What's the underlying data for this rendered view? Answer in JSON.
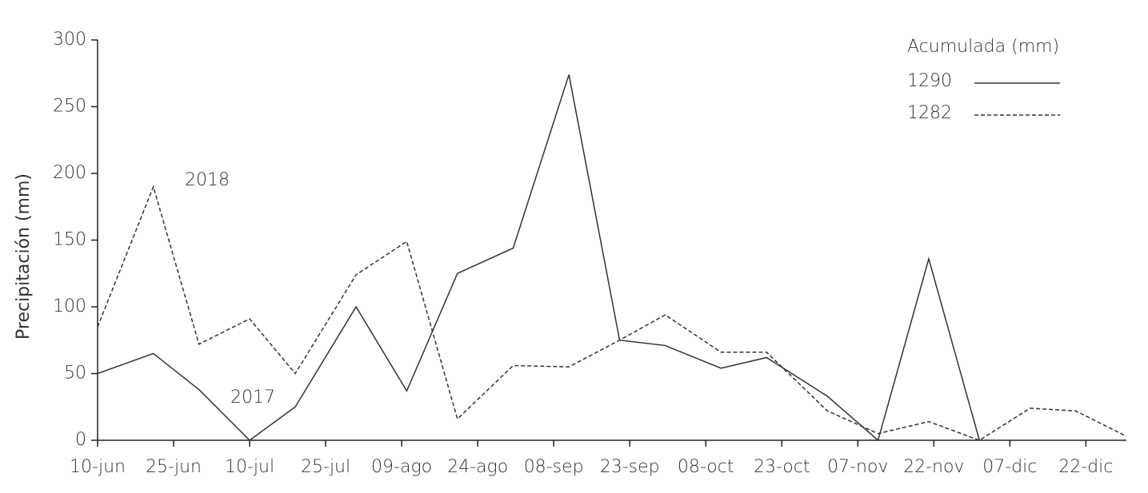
{
  "chart_data": {
    "type": "line",
    "y_label": "Precipitación (mm)",
    "legend_title": "Acumulada (mm)",
    "x": [
      161,
      172,
      181,
      191,
      200,
      212,
      222,
      232,
      243,
      254,
      264,
      273,
      284,
      293,
      305,
      315,
      325,
      335,
      345,
      354,
      364
    ],
    "series": [
      {
        "name": "2017",
        "total": "1290",
        "color": "#333333",
        "dash": "solid",
        "values": [
          50,
          65,
          38,
          0,
          25,
          100,
          37,
          125,
          144,
          274,
          75,
          71,
          54,
          62,
          33,
          0,
          136,
          0,
          null,
          null,
          null
        ]
      },
      {
        "name": "2018",
        "total": "1282",
        "color": "#333333",
        "dash": "dashed",
        "values": [
          85,
          190,
          72,
          91,
          50,
          124,
          149,
          16,
          56,
          55,
          75,
          94,
          66,
          66,
          22,
          5,
          14,
          0,
          24,
          22,
          3
        ]
      }
    ],
    "xlim": [
      161,
      364
    ],
    "xticks": [
      {
        "value": 161,
        "label": "10-jun"
      },
      {
        "value": 176,
        "label": "25-jun"
      },
      {
        "value": 191,
        "label": "10-jul"
      },
      {
        "value": 206,
        "label": "25-jul"
      },
      {
        "value": 221,
        "label": "09-ago"
      },
      {
        "value": 236,
        "label": "24-ago"
      },
      {
        "value": 251,
        "label": "08-sep"
      },
      {
        "value": 266,
        "label": "23-sep"
      },
      {
        "value": 281,
        "label": "08-oct"
      },
      {
        "value": 296,
        "label": "23-oct"
      },
      {
        "value": 311,
        "label": "07-nov"
      },
      {
        "value": 326,
        "label": "22-nov"
      },
      {
        "value": 341,
        "label": "07-dic"
      },
      {
        "value": 356,
        "label": "22-dic"
      }
    ],
    "ylim": [
      0,
      300
    ],
    "yticks": [
      0,
      50,
      100,
      150,
      200,
      250,
      300
    ],
    "grid": false
  }
}
